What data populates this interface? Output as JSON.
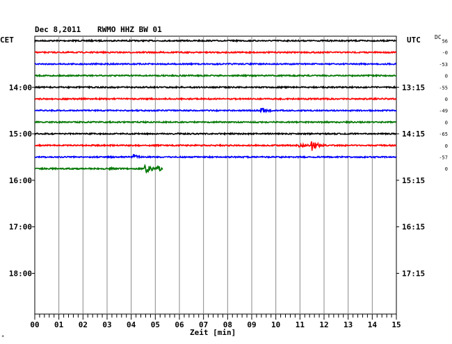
{
  "header": {
    "date": "Dec 8,2011",
    "station": "RWMO HHZ BW 01",
    "left_tz": "CET",
    "right_tz": "UTC",
    "dc_label": "DC",
    "xlabel": "Zeit [min]",
    "footnote": "*"
  },
  "chart_data": {
    "type": "line",
    "title": "Dec 8,2011   RWMO HHZ BW 01",
    "xlabel": "Zeit [min]",
    "xlim": [
      0,
      15
    ],
    "x_ticks": [
      "00",
      "01",
      "02",
      "03",
      "04",
      "05",
      "06",
      "07",
      "08",
      "09",
      "10",
      "11",
      "12",
      "13",
      "14",
      "15"
    ],
    "cet_ticks": [
      "14:00",
      "15:00",
      "16:00",
      "17:00",
      "18:00"
    ],
    "utc_ticks": [
      "13:15",
      "14:15",
      "15:15",
      "16:15",
      "17:15"
    ],
    "rows_total": 24,
    "traces": [
      {
        "row": 0,
        "color": "#000000",
        "dc": "56",
        "events": []
      },
      {
        "row": 1,
        "color": "#ff0000",
        "dc": "-0",
        "events": []
      },
      {
        "row": 2,
        "color": "#0000ff",
        "dc": "-53",
        "events": []
      },
      {
        "row": 3,
        "color": "#007700",
        "dc": "0",
        "events": []
      },
      {
        "row": 4,
        "color": "#000000",
        "dc": "-55",
        "events": []
      },
      {
        "row": 5,
        "color": "#ff0000",
        "dc": "0",
        "events": []
      },
      {
        "row": 6,
        "color": "#0000ff",
        "dc": "-49",
        "events": [
          {
            "t": 9.4,
            "amp": 4,
            "dur": 0.5
          }
        ]
      },
      {
        "row": 7,
        "color": "#007700",
        "dc": "0",
        "events": []
      },
      {
        "row": 8,
        "color": "#000000",
        "dc": "-65",
        "events": []
      },
      {
        "row": 9,
        "color": "#ff0000",
        "dc": "0",
        "events": [
          {
            "t": 11.0,
            "amp": 3,
            "dur": 0.4
          },
          {
            "t": 11.5,
            "amp": 8,
            "dur": 0.5
          }
        ]
      },
      {
        "row": 10,
        "color": "#0000ff",
        "dc": "-57",
        "events": [
          {
            "t": 4.1,
            "amp": 4,
            "dur": 0.4
          }
        ]
      },
      {
        "row": 11,
        "color": "#007700",
        "dc": "0",
        "events": [
          {
            "t": 3.1,
            "amp": 2,
            "dur": 0.3
          },
          {
            "t": 4.6,
            "amp": 9,
            "dur": 0.5
          },
          {
            "t": 5.1,
            "amp": 4,
            "dur": 0.3
          }
        ],
        "end_min": 5.3
      }
    ],
    "grid": true
  }
}
